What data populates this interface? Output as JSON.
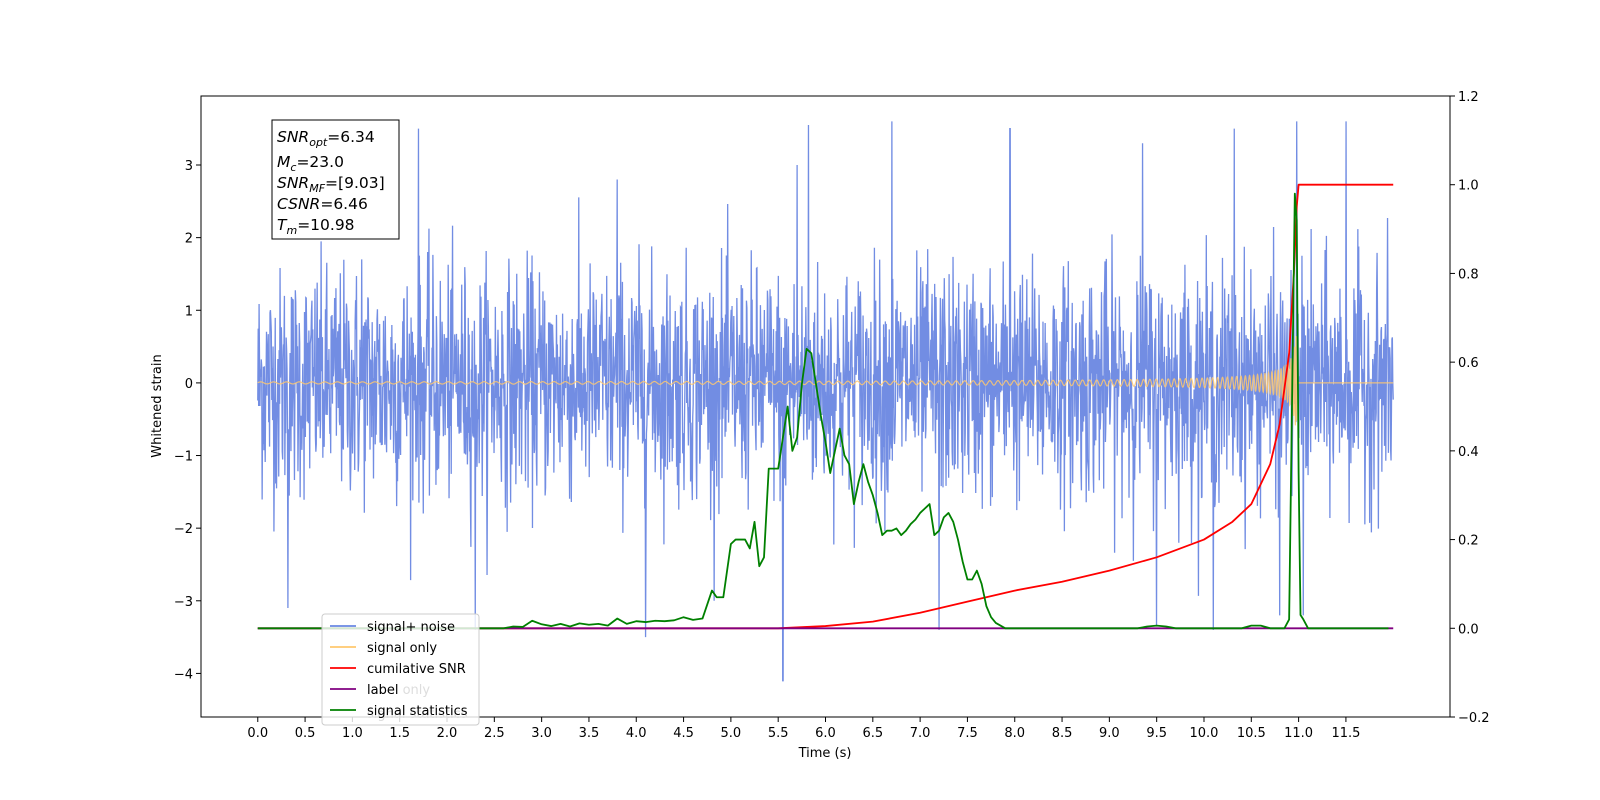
{
  "chart_data": {
    "type": "line",
    "xlabel": "Time (s)",
    "ylabel": "Whitened strain",
    "xlim": [
      -0.6,
      12.6
    ],
    "ylim": [
      -4.6,
      3.95
    ],
    "y2lim": [
      -0.2,
      1.2
    ],
    "grid": false,
    "legend_position": "lower-left",
    "x_ticks": [
      "0.0",
      "0.5",
      "1.0",
      "1.5",
      "2.0",
      "2.5",
      "3.0",
      "3.5",
      "4.0",
      "4.5",
      "5.0",
      "5.5",
      "6.0",
      "6.5",
      "7.0",
      "7.5",
      "8.0",
      "8.5",
      "9.0",
      "9.5",
      "10.0",
      "10.5",
      "11.0",
      "11.5"
    ],
    "y_ticks": [
      "3",
      "2",
      "1",
      "0",
      "−1",
      "−2",
      "−3",
      "−4"
    ],
    "y2_ticks": [
      "1.2",
      "1.0",
      "0.8",
      "0.6",
      "0.4",
      "0.2",
      "0.0",
      "−0.2"
    ],
    "infobox": {
      "snr_opt": {
        "base": "SNR",
        "sub": "opt",
        "value": "=6.34"
      },
      "mc": {
        "base": "M",
        "sub": "c",
        "value": "=23.0"
      },
      "snr_mf": {
        "base": "SNR",
        "sub": "MF",
        "value": "=[9.03]"
      },
      "csnr": {
        "base": "CSNR",
        "sub": "",
        "value": "=6.46"
      },
      "tm": {
        "base": "T",
        "sub": "m",
        "value": "=10.98"
      }
    },
    "legend": [
      {
        "label": "signal+ noise",
        "color": "#6a87e2"
      },
      {
        "label": "signal only",
        "color": "#ffc86e"
      },
      {
        "label": "cumilative SNR",
        "color": "#ff0000"
      },
      {
        "label": "label",
        "color": "#800080"
      },
      {
        "label": "signal statistics",
        "color": "#008000"
      }
    ],
    "legend_hidden_text": [
      "label only",
      "signal statistics"
    ],
    "series": [
      {
        "name": "signal+ noise",
        "axis": "left",
        "color": "#6a87e2",
        "x_range": [
          0.0,
          12.0
        ],
        "noise_sigma": 0.78,
        "spikes": [
          [
            0.32,
            -3.1
          ],
          [
            1.1,
            1.7
          ],
          [
            1.7,
            3.5
          ],
          [
            2.3,
            -3.4
          ],
          [
            3.8,
            2.8
          ],
          [
            4.1,
            -3.5
          ],
          [
            5.55,
            -4.1
          ],
          [
            5.7,
            3.0
          ],
          [
            5.82,
            3.55
          ],
          [
            6.7,
            3.6
          ],
          [
            7.2,
            -3.4
          ],
          [
            7.95,
            3.5
          ],
          [
            9.35,
            3.3
          ],
          [
            9.5,
            -3.35
          ],
          [
            10.1,
            -3.4
          ],
          [
            10.32,
            3.5
          ],
          [
            10.8,
            -3.2
          ],
          [
            10.98,
            3.6
          ],
          [
            11.5,
            3.6
          ],
          [
            11.05,
            -3.2
          ]
        ]
      },
      {
        "name": "signal only",
        "axis": "left",
        "color": "#ffc86e",
        "chirp_peak_time": 10.98,
        "peak_amplitude": 0.85
      },
      {
        "name": "cumilative SNR",
        "axis": "right",
        "color": "#ff0000",
        "x": [
          0.0,
          5.0,
          5.5,
          6.0,
          6.5,
          7.0,
          7.5,
          8.0,
          8.5,
          9.0,
          9.5,
          10.0,
          10.3,
          10.5,
          10.7,
          10.8,
          10.9,
          10.95,
          10.98,
          11.0,
          11.5,
          12.0
        ],
        "values": [
          0.0,
          0.0,
          0.0,
          0.005,
          0.015,
          0.035,
          0.06,
          0.085,
          0.105,
          0.13,
          0.16,
          0.2,
          0.24,
          0.28,
          0.37,
          0.46,
          0.62,
          0.8,
          0.95,
          1.0,
          1.0,
          1.0
        ]
      },
      {
        "name": "label",
        "axis": "right",
        "color": "#800080",
        "x": [
          0.0,
          12.0
        ],
        "values": [
          0.0,
          0.0
        ]
      },
      {
        "name": "signal statistics",
        "axis": "right",
        "color": "#008000",
        "x": [
          0.0,
          2.6,
          2.7,
          2.8,
          2.9,
          3.0,
          3.1,
          3.2,
          3.3,
          3.4,
          3.5,
          3.6,
          3.7,
          3.8,
          3.9,
          4.0,
          4.1,
          4.2,
          4.3,
          4.4,
          4.5,
          4.6,
          4.7,
          4.8,
          4.85,
          4.92,
          5.0,
          5.05,
          5.1,
          5.15,
          5.2,
          5.25,
          5.3,
          5.35,
          5.4,
          5.45,
          5.5,
          5.55,
          5.6,
          5.65,
          5.7,
          5.75,
          5.8,
          5.85,
          5.9,
          5.95,
          6.0,
          6.05,
          6.1,
          6.15,
          6.2,
          6.25,
          6.3,
          6.35,
          6.4,
          6.45,
          6.5,
          6.55,
          6.6,
          6.65,
          6.7,
          6.75,
          6.8,
          6.85,
          6.9,
          6.95,
          7.0,
          7.05,
          7.1,
          7.15,
          7.2,
          7.25,
          7.3,
          7.35,
          7.4,
          7.45,
          7.5,
          7.55,
          7.6,
          7.65,
          7.7,
          7.75,
          7.8,
          7.9,
          8.0,
          8.1,
          9.3,
          9.4,
          9.5,
          9.6,
          9.7,
          10.4,
          10.5,
          10.6,
          10.7,
          10.85,
          10.9,
          10.93,
          10.96,
          10.98,
          11.0,
          11.02,
          11.05,
          11.1,
          11.95
        ],
        "values": [
          0.0,
          0.0,
          0.004,
          0.003,
          0.017,
          0.009,
          0.005,
          0.01,
          0.004,
          0.011,
          0.008,
          0.01,
          0.006,
          0.022,
          0.01,
          0.016,
          0.014,
          0.017,
          0.016,
          0.018,
          0.025,
          0.019,
          0.022,
          0.085,
          0.07,
          0.07,
          0.19,
          0.2,
          0.2,
          0.2,
          0.18,
          0.24,
          0.14,
          0.16,
          0.36,
          0.36,
          0.36,
          0.43,
          0.5,
          0.4,
          0.43,
          0.55,
          0.63,
          0.62,
          0.55,
          0.48,
          0.42,
          0.35,
          0.4,
          0.45,
          0.39,
          0.37,
          0.28,
          0.33,
          0.37,
          0.33,
          0.3,
          0.26,
          0.21,
          0.22,
          0.22,
          0.225,
          0.21,
          0.22,
          0.235,
          0.245,
          0.26,
          0.27,
          0.28,
          0.21,
          0.22,
          0.25,
          0.26,
          0.24,
          0.2,
          0.15,
          0.11,
          0.11,
          0.13,
          0.1,
          0.05,
          0.025,
          0.012,
          0.0,
          0.0,
          0.0,
          0.0,
          0.004,
          0.006,
          0.004,
          0.0,
          0.0,
          0.006,
          0.006,
          0.0,
          0.0,
          0.02,
          0.5,
          0.98,
          0.92,
          0.35,
          0.03,
          0.02,
          0.0,
          0.0
        ]
      }
    ]
  }
}
